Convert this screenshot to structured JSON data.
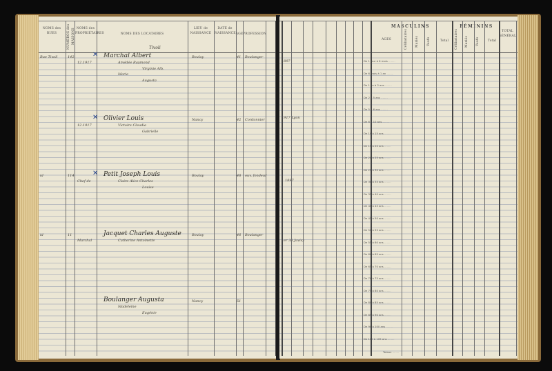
{
  "left_page": {
    "headers": {
      "street": "NOMS des RUES",
      "house_number": "NUMÉROS des MAISONS",
      "owners": "NOMS des PROPRIÉTAIRES",
      "tenants": "NOMS DES LOCATAIRES",
      "birthplace": "LIEU de NAISSANCE",
      "birthdate": "DATE de NAISSANCE",
      "age": "AGE",
      "profession": "PROFESSION"
    },
    "street_note": "Tivoli",
    "entries": [
      {
        "street": "Rue Tivoli",
        "number": "142",
        "owner_note": "12.1917",
        "head": "Marchal Albert",
        "members": [
          "Amédée Raymond",
          "Virginie Alb.",
          "Marie",
          "Augusta"
        ],
        "birthplace": "Boulay",
        "ages": "41",
        "profession": "Boulanger"
      },
      {
        "street": "",
        "number": "",
        "owner_note": "12.1917",
        "head": "Olivier Louis",
        "members": [
          "Victoire Claudia",
          "Gabrielle"
        ],
        "birthplace": "Nancy",
        "ages": "42",
        "profession": "Cordonnier"
      },
      {
        "street": "id",
        "number": "114",
        "owner_note": "Chef de",
        "head": "Petit Joseph Louis",
        "members": [
          "Claire Alice Charles",
          "Louise"
        ],
        "birthplace": "Boulay",
        "ages": "48",
        "profession": "ouv. fondeur"
      },
      {
        "street": "id",
        "number": "11",
        "owner_note": "Marchal",
        "head": "Jacquet Charles Auguste",
        "members": [
          "Catherine Antoinette"
        ],
        "birthplace": "Boulay",
        "ages": "46",
        "profession": "Boulanger"
      },
      {
        "street": "",
        "number": "",
        "owner_note": "",
        "head": "Boulanger Augusta",
        "members": [
          "Madeleine",
          "Eugénie"
        ],
        "birthplace": "Nancy",
        "ages": "51",
        "profession": ""
      }
    ]
  },
  "right_page": {
    "headers": {
      "masculins": "MASCULINS",
      "feminins": "FÉMININS",
      "total": "TOTAL GÉNÉRAL",
      "ages": "AGES",
      "celibataires": "Célibataires",
      "maries": "Mariés",
      "veufs": "Veufs",
      "total_sub": "Total"
    },
    "age_brackets": [
      "De 1 jour à 6 mois",
      "De 6 mois à 1 an",
      "De 1 an à 2 ans",
      "De 2 à 5 ans",
      "De 5 à 6 ans",
      "De 6 à 10 ans",
      "De 10 à 15 ans",
      "De 15 à 20 ans",
      "De 20 à 25 ans",
      "De 25 à 30 ans",
      "De 30 à 35 ans",
      "De 35 à 40 ans",
      "De 40 à 45 ans",
      "De 45 à 50 ans",
      "De 50 à 55 ans",
      "De 55 à 60 ans",
      "De 60 à 65 ans",
      "De 65 à 70 ans",
      "De 70 à 75 ans",
      "De 75 à 80 ans",
      "De 80 à 85 ans",
      "De 85 à 90 ans",
      "De 90 à 100 ans",
      "De 100 à 105 ans"
    ],
    "totals_label": "Totaux",
    "notes": [
      "1897",
      "1917 Lyon",
      "1897",
      "1er 38 Juvisy"
    ]
  }
}
